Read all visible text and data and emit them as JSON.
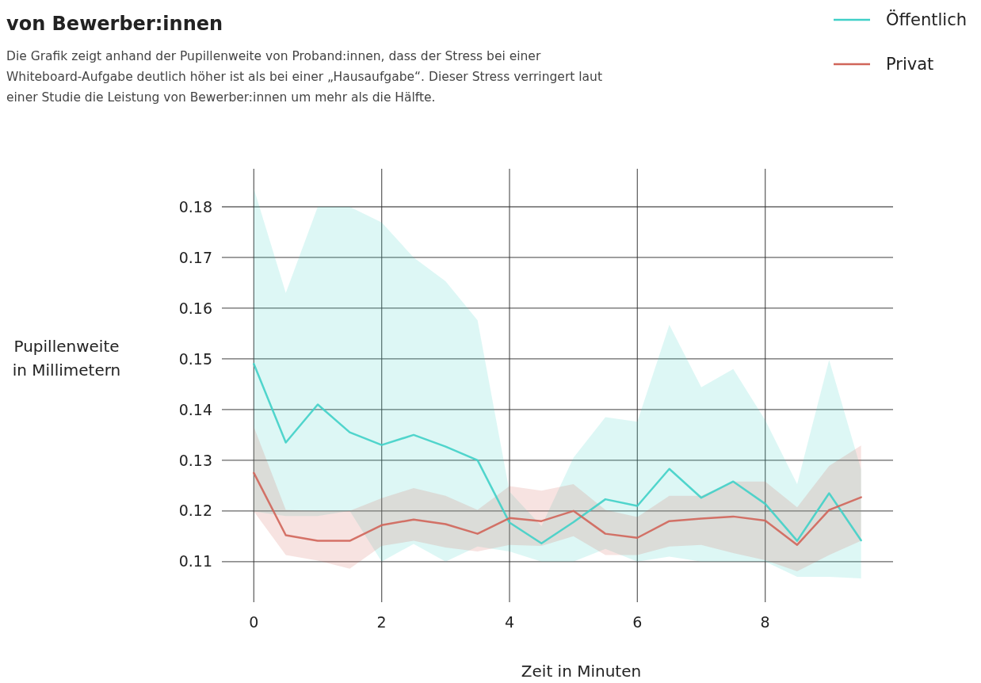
{
  "chart_data": {
    "type": "line",
    "title": "von Bewerber:innen",
    "subtitle": "Die Grafik zeigt anhand der Pupillenweite von Proband:innen, dass der Stress bei einer Whiteboard-Aufgabe deutlich höher ist als bei einer „Hausaufgabe“. Dieser Stress verringert laut einer Studie die Leistung von Bewerber:innen um mehr als die Hälfte.",
    "xlabel": "Zeit in Minuten",
    "ylabel": "Pupillenweite in Millimetern",
    "x": [
      0,
      0.5,
      1,
      1.5,
      2,
      2.5,
      3,
      3.5,
      4,
      4.5,
      5,
      5.5,
      6,
      6.5,
      7,
      7.5,
      8,
      8.5,
      9,
      9.5
    ],
    "xlim": [
      -0.5,
      10
    ],
    "xticks": [
      0,
      2,
      4,
      6,
      8
    ],
    "ylim": [
      0.102,
      0.1875
    ],
    "yticks": [
      0.11,
      0.12,
      0.13,
      0.14,
      0.15,
      0.16,
      0.17,
      0.18
    ],
    "grid": true,
    "legend": "top right",
    "line_style": "solid",
    "marker": "none",
    "series": [
      {
        "name": "Öffentlich",
        "color": "#40d0c8",
        "values": [
          0.149,
          0.1335,
          0.141,
          0.1355,
          0.133,
          0.135,
          0.1327,
          0.13,
          0.1177,
          0.1136,
          0.1178,
          0.1223,
          0.121,
          0.1283,
          0.1226,
          0.1258,
          0.1214,
          0.1141,
          0.1235,
          0.1142
        ],
        "lower": [
          0.1199,
          0.119,
          0.119,
          0.12,
          0.11,
          0.1135,
          0.11,
          0.113,
          0.112,
          0.11,
          0.11,
          0.1125,
          0.11,
          0.111,
          0.11,
          0.11,
          0.11,
          0.107,
          0.107,
          0.1067
        ],
        "upper": [
          0.1836,
          0.163,
          0.18,
          0.18,
          0.1769,
          0.17,
          0.1653,
          0.1576,
          0.1238,
          0.117,
          0.1305,
          0.1385,
          0.1376,
          0.1567,
          0.1444,
          0.148,
          0.1379,
          0.1253,
          0.1498,
          0.1282
        ]
      },
      {
        "name": "Privat",
        "color": "#d0655a",
        "values": [
          0.1275,
          0.1152,
          0.1141,
          0.1141,
          0.1172,
          0.1183,
          0.1174,
          0.1155,
          0.1186,
          0.118,
          0.12,
          0.1155,
          0.1147,
          0.118,
          0.1185,
          0.1189,
          0.1181,
          0.1133,
          0.1202,
          0.1227
        ],
        "lower": [
          0.1199,
          0.1113,
          0.1102,
          0.1086,
          0.1131,
          0.1141,
          0.1128,
          0.112,
          0.1133,
          0.1131,
          0.115,
          0.1113,
          0.1113,
          0.113,
          0.1133,
          0.1117,
          0.1103,
          0.1081,
          0.1113,
          0.1141
        ],
        "upper": [
          0.1366,
          0.1202,
          0.12,
          0.12,
          0.1225,
          0.1245,
          0.123,
          0.1202,
          0.1249,
          0.124,
          0.1253,
          0.1202,
          0.1188,
          0.123,
          0.123,
          0.1258,
          0.1258,
          0.1207,
          0.1289,
          0.1329
        ]
      }
    ]
  }
}
